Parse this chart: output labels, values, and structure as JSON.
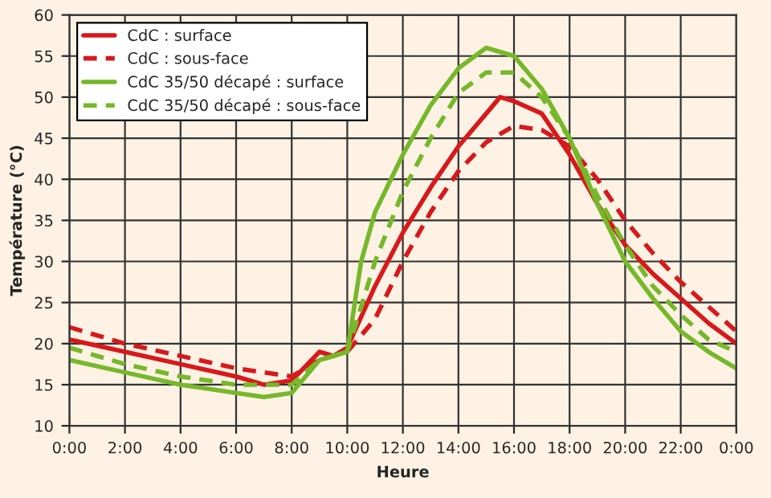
{
  "chart_data": {
    "type": "line",
    "xlabel": "Heure",
    "ylabel": "Température (°C)",
    "xlim": [
      0,
      24
    ],
    "ylim": [
      10,
      60
    ],
    "xticks": [
      {
        "value": 0,
        "label": "0:00"
      },
      {
        "value": 2,
        "label": "2:00"
      },
      {
        "value": 4,
        "label": "4:00"
      },
      {
        "value": 6,
        "label": "6:00"
      },
      {
        "value": 8,
        "label": "8:00"
      },
      {
        "value": 10,
        "label": "10:00"
      },
      {
        "value": 12,
        "label": "12:00"
      },
      {
        "value": 14,
        "label": "14:00"
      },
      {
        "value": 16,
        "label": "16:00"
      },
      {
        "value": 18,
        "label": "18:00"
      },
      {
        "value": 20,
        "label": "20:00"
      },
      {
        "value": 22,
        "label": "22:00"
      },
      {
        "value": 24,
        "label": "0:00"
      }
    ],
    "yticks": [
      10,
      15,
      20,
      25,
      30,
      35,
      40,
      45,
      50,
      55,
      60
    ],
    "grid": true,
    "legend": "top left",
    "marker": "none",
    "series": [
      {
        "name": "CdC : surface",
        "color": "#d7191c",
        "line_style": "solid",
        "x": [
          0,
          2,
          4,
          6,
          7,
          8,
          9,
          9.5,
          10,
          11,
          12,
          13,
          14,
          15,
          15.5,
          16,
          17,
          18,
          19,
          20,
          21,
          22,
          23,
          24
        ],
        "values": [
          20.5,
          19,
          17.5,
          16,
          15,
          15.5,
          19,
          18.5,
          19.5,
          27,
          33.5,
          39,
          44,
          48,
          50,
          49.5,
          48,
          43,
          37,
          32,
          28.5,
          25.5,
          22.5,
          20
        ]
      },
      {
        "name": "CdC : sous-face",
        "color": "#d7191c",
        "line_style": "dashed",
        "x": [
          0,
          2,
          4,
          6,
          8,
          9,
          10,
          11,
          12,
          13,
          14,
          15,
          16,
          17,
          18,
          19,
          20,
          21,
          22,
          23,
          24
        ],
        "values": [
          22,
          20,
          18.5,
          17,
          16,
          18,
          19,
          23,
          30,
          36,
          41,
          44.5,
          46.5,
          46,
          44,
          40,
          35,
          31,
          27.5,
          24.5,
          21.5
        ]
      },
      {
        "name": "CdC 35/50 décapé : surface",
        "color": "#76b82a",
        "line_style": "solid",
        "x": [
          0,
          2,
          4,
          6,
          7,
          8,
          9,
          10,
          10.5,
          11,
          12,
          13,
          14,
          15,
          16,
          17,
          18,
          19,
          20,
          21,
          22,
          23,
          24
        ],
        "values": [
          18,
          16.5,
          15,
          14,
          13.5,
          14,
          18,
          19,
          30,
          36,
          43,
          49,
          53.5,
          56,
          55,
          51,
          45,
          37,
          30,
          25.5,
          21.5,
          19,
          17
        ]
      },
      {
        "name": "CdC 35/50 décapé : sous-face",
        "color": "#76b82a",
        "line_style": "dashed",
        "x": [
          0,
          2,
          4,
          6,
          8,
          9,
          10,
          11,
          12,
          13,
          14,
          15,
          16,
          17,
          18,
          19,
          20,
          21,
          22,
          23,
          24
        ],
        "values": [
          19.5,
          17.5,
          16,
          15,
          15,
          18,
          19,
          30,
          38.5,
          45,
          50.5,
          53,
          53,
          50,
          45,
          38,
          32,
          27,
          23.5,
          20.5,
          19
        ]
      }
    ]
  }
}
